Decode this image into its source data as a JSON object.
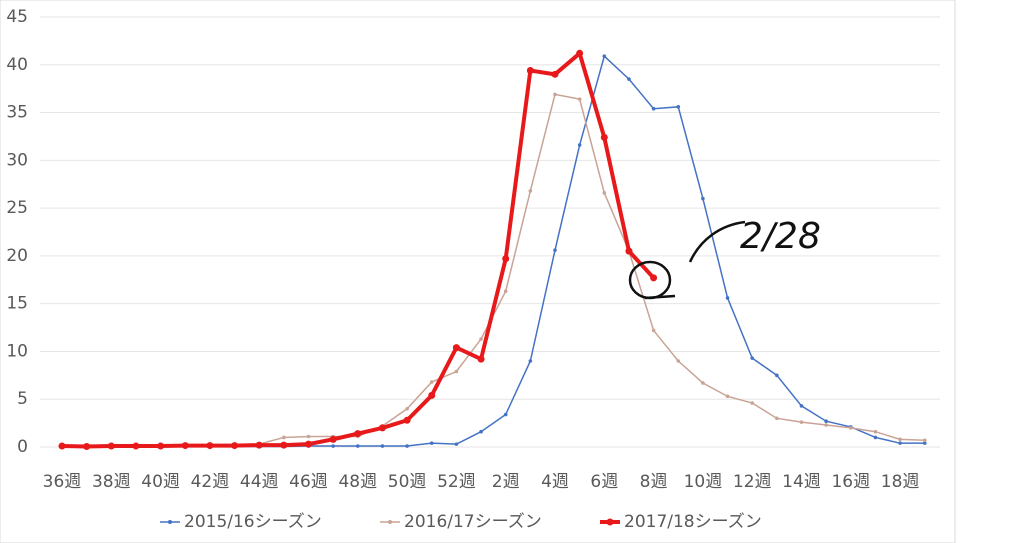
{
  "chart_data": {
    "type": "line",
    "categories": [
      "36週",
      null,
      "38週",
      null,
      "40週",
      null,
      "42週",
      null,
      "44週",
      null,
      "46週",
      null,
      "48週",
      null,
      "50週",
      null,
      "52週",
      null,
      "2週",
      null,
      "4週",
      null,
      "6週",
      null,
      "8週",
      null,
      "10週",
      null,
      "12週",
      null,
      "14週",
      null,
      "16週",
      null,
      "18週",
      null
    ],
    "series": [
      {
        "name": "2015/16シーズン",
        "color": "#4472c4",
        "values": [
          0.05,
          0.05,
          0.05,
          0.05,
          0.05,
          0.05,
          0.05,
          0.05,
          0.05,
          0.05,
          0.1,
          0.1,
          0.1,
          0.1,
          0.1,
          0.4,
          0.3,
          1.6,
          3.4,
          9.0,
          20.6,
          31.6,
          40.9,
          38.5,
          35.4,
          35.6,
          26.0,
          15.6,
          9.3,
          7.5,
          4.3,
          2.7,
          2.1,
          1.0,
          0.4,
          0.4
        ]
      },
      {
        "name": "2016/17シーズン",
        "color": "#c9a395",
        "values": [
          0.1,
          0.1,
          0.1,
          0.1,
          0.1,
          0.1,
          0.1,
          0.2,
          0.3,
          1.0,
          1.1,
          1.1,
          1.1,
          2.2,
          4.0,
          6.8,
          7.9,
          11.3,
          16.3,
          26.8,
          36.9,
          36.4,
          26.6,
          20.5,
          12.2,
          9.0,
          6.7,
          5.3,
          4.6,
          3.0,
          2.6,
          2.3,
          2.0,
          1.6,
          0.8,
          0.7
        ]
      },
      {
        "name": "2017/18シーズン",
        "color": "#e8191b",
        "values": [
          0.1,
          0.05,
          0.1,
          0.1,
          0.1,
          0.15,
          0.15,
          0.15,
          0.2,
          0.2,
          0.3,
          0.8,
          1.4,
          2.0,
          2.8,
          5.4,
          10.4,
          9.2,
          19.7,
          39.4,
          39.0,
          41.2,
          32.4,
          20.5,
          17.7,
          null,
          null,
          null,
          null,
          null,
          null,
          null,
          null,
          null,
          null,
          null
        ]
      }
    ],
    "ylim": [
      0,
      45
    ],
    "yticks": [
      0,
      5,
      10,
      15,
      20,
      25,
      30,
      35,
      40,
      45
    ],
    "grid": true,
    "annotation": "2/28",
    "legend": "bottom"
  }
}
